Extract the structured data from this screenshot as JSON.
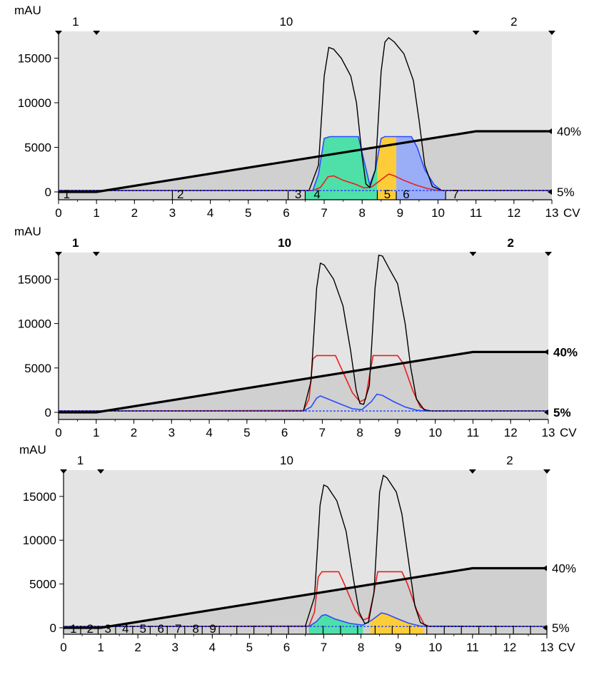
{
  "colors": {
    "plot_bg": "#e4e4e4",
    "gradient_fill": "#d0d0d0",
    "uv280": "#000000",
    "uv_red": "#ee1c1c",
    "uv_blue": "#2a4bff",
    "frac_green": "#4ee0a8",
    "frac_yellow": "#fdcd39",
    "frac_blue": "#9aaef8",
    "gradient_line": "#000000"
  },
  "chart_data": [
    {
      "type": "line",
      "y_unit": "mAU",
      "x_unit": "CV",
      "xlim": [
        0,
        13
      ],
      "ylim": [
        -800,
        18000
      ],
      "x_ticks": [
        "0",
        "1",
        "2",
        "3",
        "4",
        "5",
        "6",
        "7",
        "8",
        "9",
        "10",
        "11",
        "12",
        "13"
      ],
      "y_ticks": [
        "0",
        "5000",
        "10000",
        "15000"
      ],
      "events": [
        {
          "x": 0,
          "label": ""
        },
        {
          "x": 1,
          "label": ""
        },
        {
          "x": 11,
          "label": ""
        },
        {
          "x": 13,
          "label": ""
        }
      ],
      "phase_labels": [
        {
          "x": 0.45,
          "label": "1"
        },
        {
          "x": 6.0,
          "label": "10"
        },
        {
          "x": 12.0,
          "label": "2"
        }
      ],
      "gradient": {
        "points": [
          [
            0,
            5
          ],
          [
            1,
            5
          ],
          [
            11,
            40
          ],
          [
            13,
            40
          ]
        ],
        "labels": [
          "40%",
          "5%"
        ]
      },
      "uv_main": {
        "name": "",
        "points": [
          [
            0,
            150
          ],
          [
            6.6,
            150
          ],
          [
            6.85,
            3000
          ],
          [
            7.0,
            13000
          ],
          [
            7.12,
            16200
          ],
          [
            7.25,
            16000
          ],
          [
            7.45,
            15000
          ],
          [
            7.7,
            13000
          ],
          [
            7.85,
            10000
          ],
          [
            8.0,
            4000
          ],
          [
            8.1,
            900
          ],
          [
            8.2,
            500
          ],
          [
            8.35,
            2500
          ],
          [
            8.5,
            13500
          ],
          [
            8.6,
            16800
          ],
          [
            8.7,
            17300
          ],
          [
            8.85,
            16800
          ],
          [
            9.1,
            15500
          ],
          [
            9.35,
            12500
          ],
          [
            9.5,
            8000
          ],
          [
            9.65,
            3000
          ],
          [
            9.85,
            600
          ],
          [
            10.1,
            150
          ],
          [
            13,
            150
          ]
        ]
      },
      "uv_red": {
        "name": "",
        "points": [
          [
            0,
            150
          ],
          [
            6.7,
            150
          ],
          [
            6.9,
            500
          ],
          [
            7.1,
            1700
          ],
          [
            7.25,
            1800
          ],
          [
            7.5,
            1300
          ],
          [
            7.8,
            900
          ],
          [
            8.05,
            450
          ],
          [
            8.25,
            550
          ],
          [
            8.45,
            1200
          ],
          [
            8.7,
            2000
          ],
          [
            8.85,
            1800
          ],
          [
            9.1,
            1300
          ],
          [
            9.4,
            800
          ],
          [
            9.7,
            400
          ],
          [
            10.0,
            150
          ],
          [
            13,
            150
          ]
        ]
      },
      "uv_blue": {
        "name": "",
        "points": [
          [
            0,
            150
          ],
          [
            6.7,
            150
          ],
          [
            6.85,
            2000
          ],
          [
            7.0,
            6000
          ],
          [
            7.15,
            6200
          ],
          [
            7.9,
            6200
          ],
          [
            8.05,
            3500
          ],
          [
            8.2,
            800
          ],
          [
            8.35,
            2500
          ],
          [
            8.5,
            6000
          ],
          [
            8.6,
            6200
          ],
          [
            9.3,
            6200
          ],
          [
            9.45,
            5000
          ],
          [
            9.65,
            2500
          ],
          [
            9.9,
            800
          ],
          [
            10.1,
            150
          ],
          [
            13,
            150
          ]
        ]
      },
      "fractions": [
        {
          "label": "1",
          "x": 0.1
        },
        {
          "label": "2",
          "x": 3.1
        },
        {
          "label": "3",
          "x": 6.2
        },
        {
          "label": "4",
          "x": 6.7
        },
        {
          "label": "5",
          "x": 8.55
        },
        {
          "label": "6",
          "x": 9.05
        },
        {
          "label": "7",
          "x": 10.35
        }
      ],
      "fraction_ticks": [
        0,
        3,
        6.05,
        6.5,
        8.4,
        8.9,
        10.2
      ],
      "fraction_fills": [
        {
          "from": 6.5,
          "to": 8.4,
          "color": "green"
        },
        {
          "from": 8.4,
          "to": 8.9,
          "color": "yellow"
        },
        {
          "from": 8.9,
          "to": 10.2,
          "color": "blue"
        }
      ]
    },
    {
      "type": "line",
      "y_unit": "mAU",
      "x_unit": "CV",
      "xlim": [
        0,
        13
      ],
      "ylim": [
        -800,
        18000
      ],
      "x_ticks": [
        "0",
        "1",
        "2",
        "3",
        "4",
        "5",
        "6",
        "7",
        "8",
        "9",
        "10",
        "11",
        "12",
        "13"
      ],
      "y_ticks": [
        "0",
        "5000",
        "10000",
        "15000"
      ],
      "events": [
        {
          "x": 0,
          "label": ""
        },
        {
          "x": 1,
          "label": ""
        },
        {
          "x": 11,
          "label": ""
        },
        {
          "x": 13,
          "label": ""
        }
      ],
      "phase_labels": [
        {
          "x": 0.45,
          "label": "1"
        },
        {
          "x": 6.0,
          "label": "10"
        },
        {
          "x": 12.0,
          "label": "2"
        }
      ],
      "gradient": {
        "points": [
          [
            0,
            5
          ],
          [
            1,
            5
          ],
          [
            11,
            40
          ],
          [
            13,
            40
          ]
        ],
        "labels": [
          "40%",
          "5%"
        ]
      },
      "uv_main": {
        "name": "",
        "points": [
          [
            0,
            150
          ],
          [
            6.5,
            150
          ],
          [
            6.7,
            3500
          ],
          [
            6.85,
            14000
          ],
          [
            6.95,
            16800
          ],
          [
            7.05,
            16600
          ],
          [
            7.3,
            15000
          ],
          [
            7.55,
            12000
          ],
          [
            7.75,
            7000
          ],
          [
            7.9,
            2500
          ],
          [
            8.0,
            1000
          ],
          [
            8.1,
            900
          ],
          [
            8.25,
            3000
          ],
          [
            8.4,
            14000
          ],
          [
            8.5,
            17700
          ],
          [
            8.6,
            17600
          ],
          [
            8.8,
            16000
          ],
          [
            9.0,
            14500
          ],
          [
            9.2,
            10000
          ],
          [
            9.35,
            5000
          ],
          [
            9.5,
            1500
          ],
          [
            9.7,
            300
          ],
          [
            9.9,
            150
          ],
          [
            13,
            150
          ]
        ]
      },
      "uv_red": {
        "name": "",
        "points": [
          [
            0,
            150
          ],
          [
            6.5,
            200
          ],
          [
            6.65,
            1500
          ],
          [
            6.75,
            6000
          ],
          [
            6.85,
            6400
          ],
          [
            7.35,
            6400
          ],
          [
            7.5,
            5000
          ],
          [
            7.8,
            2200
          ],
          [
            8.0,
            1200
          ],
          [
            8.15,
            1500
          ],
          [
            8.25,
            4000
          ],
          [
            8.35,
            6400
          ],
          [
            9.0,
            6400
          ],
          [
            9.15,
            5500
          ],
          [
            9.4,
            2500
          ],
          [
            9.6,
            600
          ],
          [
            9.8,
            150
          ],
          [
            13,
            150
          ]
        ]
      },
      "uv_blue": {
        "name": "",
        "points": [
          [
            0,
            150
          ],
          [
            6.5,
            150
          ],
          [
            6.7,
            600
          ],
          [
            6.85,
            1600
          ],
          [
            6.95,
            1850
          ],
          [
            7.15,
            1500
          ],
          [
            7.5,
            900
          ],
          [
            7.8,
            400
          ],
          [
            8.05,
            300
          ],
          [
            8.3,
            1200
          ],
          [
            8.45,
            2050
          ],
          [
            8.6,
            1900
          ],
          [
            8.9,
            1200
          ],
          [
            9.2,
            600
          ],
          [
            9.5,
            250
          ],
          [
            9.7,
            150
          ],
          [
            13,
            150
          ]
        ]
      },
      "fractions": [],
      "fraction_ticks": [],
      "fraction_fills": []
    },
    {
      "type": "line",
      "y_unit": "mAU",
      "x_unit": "CV",
      "xlim": [
        0,
        13
      ],
      "ylim": [
        -800,
        18000
      ],
      "x_ticks": [
        "0",
        "1",
        "2",
        "3",
        "4",
        "5",
        "6",
        "7",
        "8",
        "9",
        "10",
        "11",
        "12",
        "13"
      ],
      "y_ticks": [
        "0",
        "5000",
        "10000",
        "15000"
      ],
      "events": [
        {
          "x": 0,
          "label": ""
        },
        {
          "x": 1,
          "label": ""
        },
        {
          "x": 11,
          "label": ""
        },
        {
          "x": 13,
          "label": ""
        }
      ],
      "phase_labels": [
        {
          "x": 0.45,
          "label": "1"
        },
        {
          "x": 6.0,
          "label": "10"
        },
        {
          "x": 12.0,
          "label": "2"
        }
      ],
      "gradient": {
        "points": [
          [
            0,
            5
          ],
          [
            1,
            5
          ],
          [
            11,
            40
          ],
          [
            13,
            40
          ]
        ],
        "labels": [
          "40%",
          "5%"
        ]
      },
      "uv_main": {
        "name": "",
        "points": [
          [
            0,
            150
          ],
          [
            6.5,
            150
          ],
          [
            6.75,
            3500
          ],
          [
            6.9,
            14000
          ],
          [
            7.0,
            16300
          ],
          [
            7.1,
            16100
          ],
          [
            7.35,
            14500
          ],
          [
            7.6,
            11000
          ],
          [
            7.8,
            5500
          ],
          [
            7.95,
            1800
          ],
          [
            8.1,
            500
          ],
          [
            8.2,
            600
          ],
          [
            8.35,
            4000
          ],
          [
            8.5,
            15500
          ],
          [
            8.6,
            17400
          ],
          [
            8.7,
            17100
          ],
          [
            8.95,
            15500
          ],
          [
            9.1,
            13000
          ],
          [
            9.3,
            7000
          ],
          [
            9.45,
            2500
          ],
          [
            9.6,
            600
          ],
          [
            9.8,
            150
          ],
          [
            13,
            150
          ]
        ]
      },
      "uv_red": {
        "name": "",
        "points": [
          [
            0,
            150
          ],
          [
            6.6,
            200
          ],
          [
            6.75,
            1800
          ],
          [
            6.85,
            5800
          ],
          [
            6.95,
            6400
          ],
          [
            7.4,
            6400
          ],
          [
            7.55,
            5000
          ],
          [
            7.85,
            2000
          ],
          [
            8.05,
            900
          ],
          [
            8.2,
            1100
          ],
          [
            8.35,
            4000
          ],
          [
            8.45,
            6400
          ],
          [
            9.1,
            6400
          ],
          [
            9.25,
            5000
          ],
          [
            9.5,
            2000
          ],
          [
            9.7,
            400
          ],
          [
            9.85,
            150
          ],
          [
            13,
            150
          ]
        ]
      },
      "uv_blue": {
        "name": "",
        "points": [
          [
            0,
            150
          ],
          [
            6.6,
            150
          ],
          [
            6.8,
            700
          ],
          [
            6.95,
            1400
          ],
          [
            7.05,
            1500
          ],
          [
            7.3,
            1000
          ],
          [
            7.7,
            500
          ],
          [
            8.05,
            300
          ],
          [
            8.3,
            900
          ],
          [
            8.55,
            1700
          ],
          [
            8.7,
            1550
          ],
          [
            9.0,
            1000
          ],
          [
            9.3,
            500
          ],
          [
            9.6,
            200
          ],
          [
            13,
            150
          ]
        ]
      },
      "fractions": [
        {
          "label": "1",
          "x": 0.15
        },
        {
          "label": "2",
          "x": 0.6
        },
        {
          "label": "3",
          "x": 1.08
        },
        {
          "label": "4",
          "x": 1.55
        },
        {
          "label": "5",
          "x": 2.02
        },
        {
          "label": "6",
          "x": 2.5
        },
        {
          "label": "7",
          "x": 2.97
        },
        {
          "label": "8",
          "x": 3.44
        },
        {
          "label": "9",
          "x": 3.9
        }
      ],
      "fraction_ticks": [
        0,
        0.46,
        0.93,
        1.4,
        1.86,
        2.33,
        2.79,
        3.26,
        3.73,
        4.19,
        4.66,
        5.12,
        5.59,
        6.05,
        6.52,
        6.98,
        7.45,
        7.91,
        8.38,
        8.84,
        9.31,
        9.77,
        10.24,
        10.7,
        11.17,
        11.63,
        12.1,
        12.56,
        13
      ],
      "fraction_fills": [
        {
          "from": 6.6,
          "to": 8.05,
          "color": "green"
        },
        {
          "from": 8.25,
          "to": 9.7,
          "color": "yellow"
        }
      ]
    }
  ],
  "panel_titles": [
    "mAU",
    "mAU",
    "mAU"
  ],
  "x_unit_label": "CV"
}
